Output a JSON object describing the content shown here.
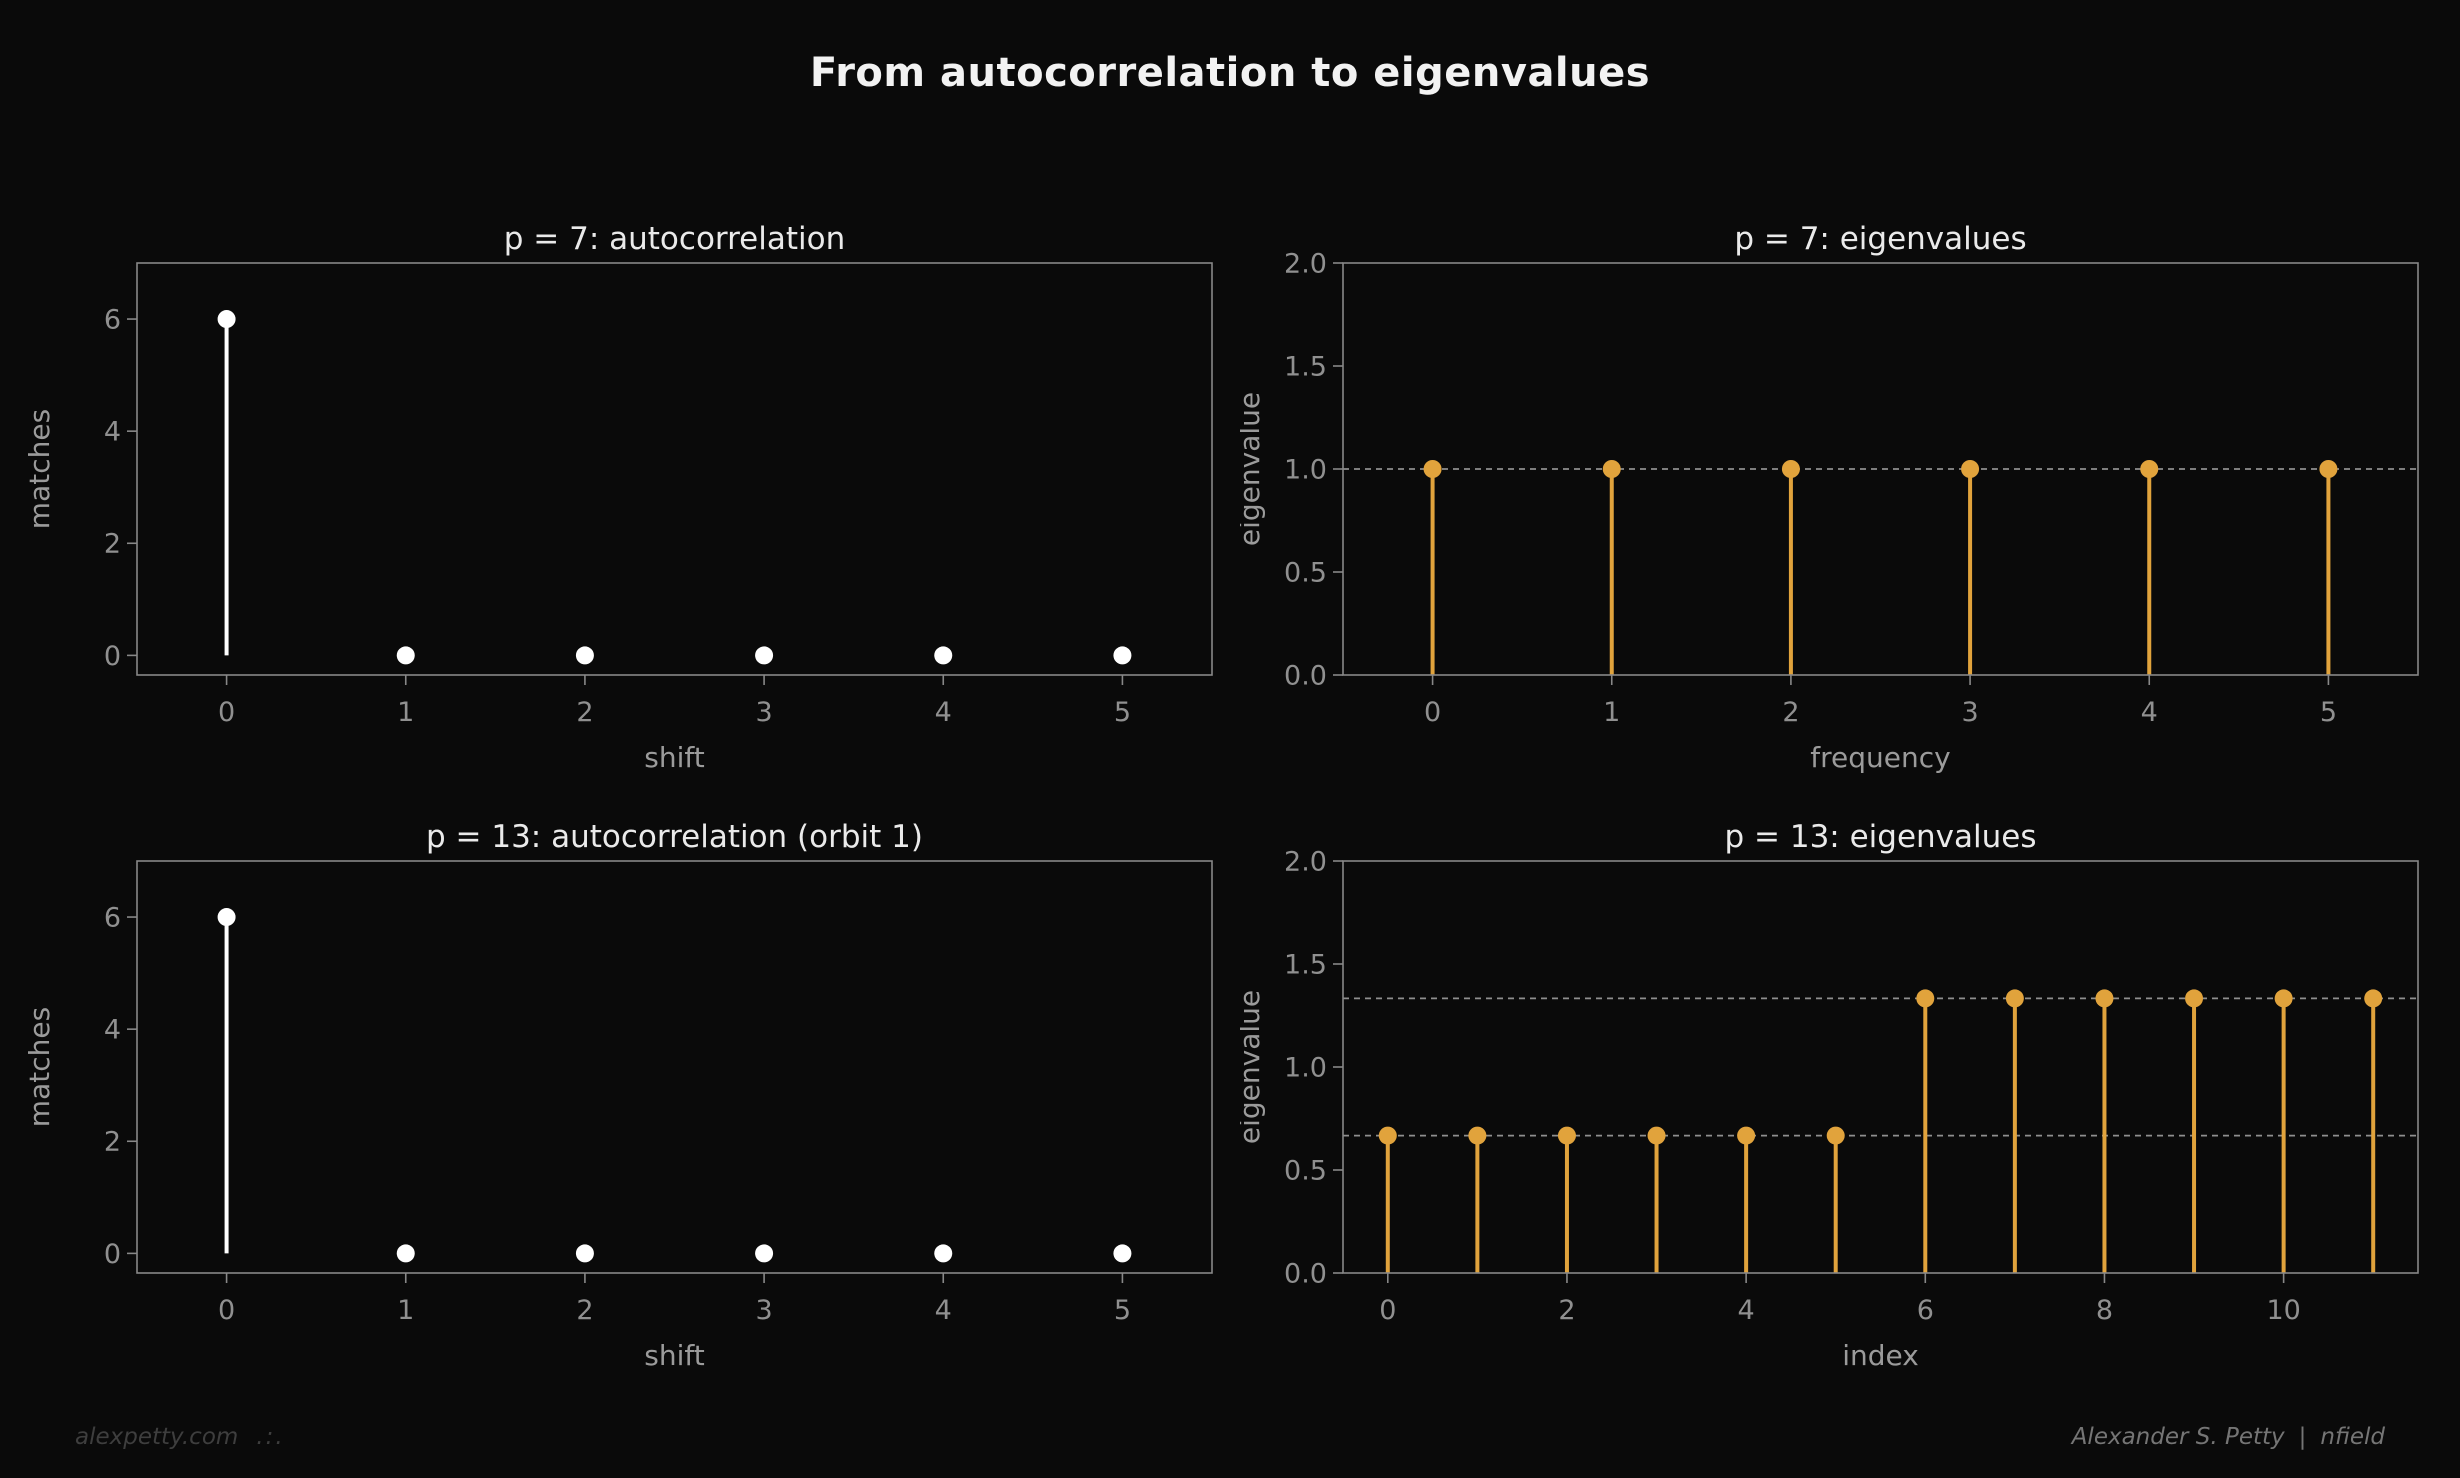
{
  "figure": {
    "title": "From autocorrelation to eigenvalues",
    "footer": {
      "left": "alexpetty.com",
      "left_mark": ".:.",
      "right_author": "Alexander S. Petty",
      "right_sep": "|",
      "right_brand": "nfield"
    }
  },
  "theme": {
    "background": "#0a0a0a",
    "spine": "#888888",
    "tick_label": "#909090",
    "axis_label": "#9b9b9b",
    "subplot_title": "#eaeaea",
    "figure_title": "#f2f2f2",
    "dashed_line": "#8f8f8f",
    "white_series": "#ffffff",
    "accent_series": "#e1a33c",
    "footer_left": "#3e3e3e",
    "footer_right": "#757575"
  },
  "chart_data": [
    {
      "id": "p7-autocorrelation",
      "type": "stem",
      "title": "p = 7: autocorrelation",
      "xlabel": "shift",
      "ylabel": "matches",
      "x": [
        0,
        1,
        2,
        3,
        4,
        5
      ],
      "values": [
        6,
        0,
        0,
        0,
        0,
        0
      ],
      "color": "#ffffff",
      "xlim": [
        -0.5,
        5.5
      ],
      "ylim": [
        -0.35,
        7.0
      ],
      "xticks": [
        0,
        1,
        2,
        3,
        4,
        5
      ],
      "xtick_labels": [
        "0",
        "1",
        "2",
        "3",
        "4",
        "5"
      ],
      "yticks": [
        0,
        2,
        4,
        6
      ],
      "ytick_labels": [
        "0",
        "2",
        "4",
        "6"
      ],
      "dashed_lines": [],
      "grid": false,
      "legend": null
    },
    {
      "id": "p7-eigenvalues",
      "type": "stem",
      "title": "p = 7: eigenvalues",
      "xlabel": "frequency",
      "ylabel": "eigenvalue",
      "x": [
        0,
        1,
        2,
        3,
        4,
        5
      ],
      "values": [
        1.0,
        1.0,
        1.0,
        1.0,
        1.0,
        1.0
      ],
      "color": "#e1a33c",
      "xlim": [
        -0.5,
        5.5
      ],
      "ylim": [
        0.0,
        2.0
      ],
      "xticks": [
        0,
        1,
        2,
        3,
        4,
        5
      ],
      "xtick_labels": [
        "0",
        "1",
        "2",
        "3",
        "4",
        "5"
      ],
      "yticks": [
        0.0,
        0.5,
        1.0,
        1.5,
        2.0
      ],
      "ytick_labels": [
        "0.0",
        "0.5",
        "1.0",
        "1.5",
        "2.0"
      ],
      "dashed_lines": [
        1.0
      ],
      "grid": false,
      "legend": null
    },
    {
      "id": "p13-autocorrelation-orbit1",
      "type": "stem",
      "title": "p = 13: autocorrelation (orbit 1)",
      "xlabel": "shift",
      "ylabel": "matches",
      "x": [
        0,
        1,
        2,
        3,
        4,
        5
      ],
      "values": [
        6,
        0,
        0,
        0,
        0,
        0
      ],
      "color": "#ffffff",
      "xlim": [
        -0.5,
        5.5
      ],
      "ylim": [
        -0.35,
        7.0
      ],
      "xticks": [
        0,
        1,
        2,
        3,
        4,
        5
      ],
      "xtick_labels": [
        "0",
        "1",
        "2",
        "3",
        "4",
        "5"
      ],
      "yticks": [
        0,
        2,
        4,
        6
      ],
      "ytick_labels": [
        "0",
        "2",
        "4",
        "6"
      ],
      "dashed_lines": [],
      "grid": false,
      "legend": null
    },
    {
      "id": "p13-eigenvalues",
      "type": "stem",
      "title": "p = 13: eigenvalues",
      "xlabel": "index",
      "ylabel": "eigenvalue",
      "x": [
        0,
        1,
        2,
        3,
        4,
        5,
        6,
        7,
        8,
        9,
        10,
        11
      ],
      "values": [
        0.667,
        0.667,
        0.667,
        0.667,
        0.667,
        0.667,
        1.333,
        1.333,
        1.333,
        1.333,
        1.333,
        1.333
      ],
      "color": "#e1a33c",
      "xlim": [
        -0.5,
        11.5
      ],
      "ylim": [
        0.0,
        2.0
      ],
      "xticks": [
        0,
        2,
        4,
        6,
        8,
        10
      ],
      "xtick_labels": [
        "0",
        "2",
        "4",
        "6",
        "8",
        "10"
      ],
      "yticks": [
        0.0,
        0.5,
        1.0,
        1.5,
        2.0
      ],
      "ytick_labels": [
        "0.0",
        "0.5",
        "1.0",
        "1.5",
        "2.0"
      ],
      "dashed_lines": [
        0.667,
        1.333
      ],
      "grid": false,
      "legend": null
    }
  ]
}
